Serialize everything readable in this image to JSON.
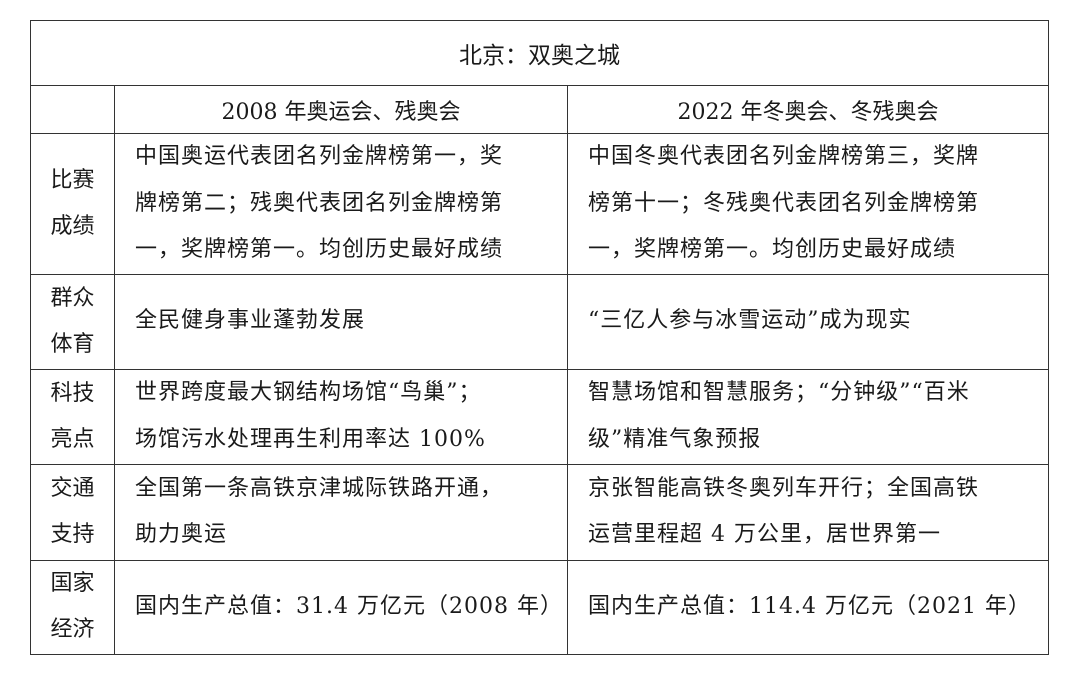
{
  "title": "北京：双奥之城",
  "headers": [
    "",
    "2008 年奥运会、残奥会",
    "2022 年冬奥会、冬残奥会"
  ],
  "rows": [
    {
      "label": [
        "比赛",
        "成绩"
      ],
      "c2008": [
        "中国奥运代表团名列金牌榜第一，奖",
        "牌榜第二；残奥代表团名列金牌榜第",
        "一，奖牌榜第一。均创历史最好成绩"
      ],
      "c2022": [
        "中国冬奥代表团名列金牌榜第三，奖牌",
        "榜第十一；冬残奥代表团名列金牌榜第",
        "一，奖牌榜第一。均创历史最好成绩"
      ]
    },
    {
      "label": [
        "群众",
        "体育"
      ],
      "c2008": [
        "全民健身事业蓬勃发展"
      ],
      "c2022": [
        "“三亿人参与冰雪运动”成为现实"
      ]
    },
    {
      "label": [
        "科技",
        "亮点"
      ],
      "c2008": [
        "世界跨度最大钢结构场馆“鸟巢”；",
        "场馆污水处理再生利用率达 100%"
      ],
      "c2022": [
        "智慧场馆和智慧服务；“分钟级”“百米",
        "级”精准气象预报"
      ]
    },
    {
      "label": [
        "交通",
        "支持"
      ],
      "c2008": [
        "全国第一条高铁京津城际铁路开通，",
        "助力奥运"
      ],
      "c2022": [
        "京张智能高铁冬奥列车开行；全国高铁",
        "运营里程超 4 万公里，居世界第一"
      ]
    },
    {
      "label": [
        "国家",
        "经济"
      ],
      "c2008": [
        "国内生产总值：31.4 万亿元（2008 年）"
      ],
      "c2022": [
        "国内生产总值：114.4 万亿元（2021 年）"
      ]
    }
  ]
}
